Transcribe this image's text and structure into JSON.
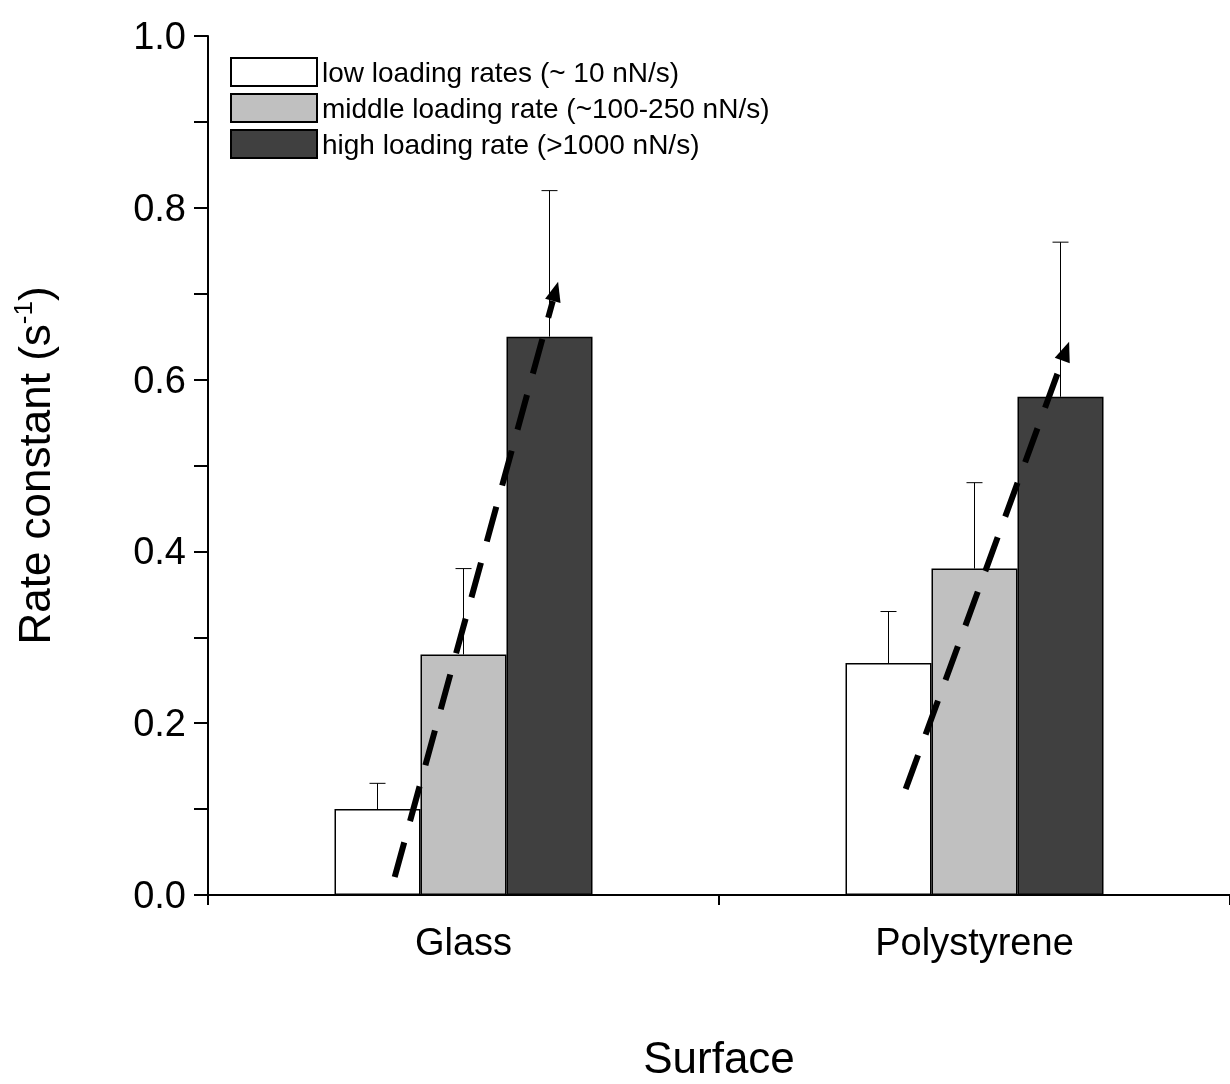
{
  "chart_data": {
    "type": "bar",
    "xlabel": "Surface",
    "ylabel": "Rate constant (s$^{-1}$)",
    "categories": [
      "Glass",
      "Polystyrene"
    ],
    "series": [
      {
        "name": "low loading rates (~ 10 nN/s)",
        "color": "#ffffff",
        "values": [
          0.1,
          0.27
        ],
        "errors": [
          [
            0.1,
            0.13
          ],
          [
            0.27,
            0.33
          ]
        ]
      },
      {
        "name": "middle loading rate (~100-250 nN/s)",
        "color": "#c0c0c0",
        "values": [
          0.28,
          0.38
        ],
        "errors": [
          [
            0.28,
            0.38
          ],
          [
            0.38,
            0.48
          ]
        ]
      },
      {
        "name": "high loading rate (>1000 nN/s)",
        "color": "#404040",
        "values": [
          0.65,
          0.58
        ],
        "errors": [
          [
            0.65,
            0.82
          ],
          [
            0.58,
            0.76
          ]
        ]
      }
    ],
    "ylim": [
      0,
      1
    ],
    "yticks": [
      {
        "value": 0,
        "label": "0.0"
      },
      {
        "value": 0.1,
        "label": null
      },
      0.2,
      {
        "value": 0.3,
        "label": null
      },
      0.4,
      {
        "value": 0.5,
        "label": null
      },
      0.6,
      {
        "value": 0.7,
        "label": null
      },
      0.8,
      {
        "value": 0.9,
        "label": null
      },
      {
        "value": 1,
        "label": "1.0"
      }
    ],
    "grid": false,
    "legend": "top left"
  }
}
